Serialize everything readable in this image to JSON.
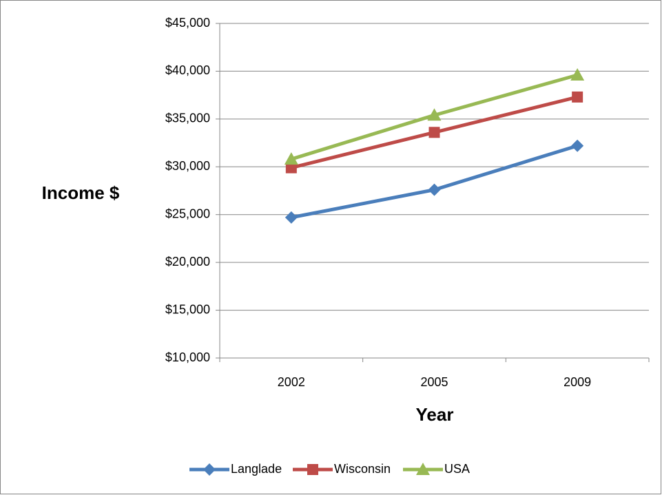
{
  "chart_data": {
    "type": "line",
    "y_label": "Income $",
    "x_label": "Year",
    "categories": [
      "2002",
      "2005",
      "2009"
    ],
    "series": [
      {
        "name": "Langlade",
        "color": "#4a7ebb",
        "marker": "diamond",
        "values": [
          24700,
          27600,
          32200
        ]
      },
      {
        "name": "Wisconsin",
        "color": "#be4b48",
        "marker": "square",
        "values": [
          29900,
          33600,
          37300
        ]
      },
      {
        "name": "USA",
        "color": "#98b954",
        "marker": "triangle",
        "values": [
          30800,
          35400,
          39600
        ]
      }
    ],
    "ylim": [
      10000,
      45000
    ],
    "yticks": [
      {
        "value": 10000,
        "label": "$10,000"
      },
      {
        "value": 15000,
        "label": "$15,000"
      },
      {
        "value": 20000,
        "label": "$20,000"
      },
      {
        "value": 25000,
        "label": "$25,000"
      },
      {
        "value": 30000,
        "label": "$30,000"
      },
      {
        "value": 35000,
        "label": "$35,000"
      },
      {
        "value": 40000,
        "label": "$40,000"
      },
      {
        "value": 45000,
        "label": "$45,000"
      }
    ],
    "grid": true,
    "legend": "bottom"
  }
}
